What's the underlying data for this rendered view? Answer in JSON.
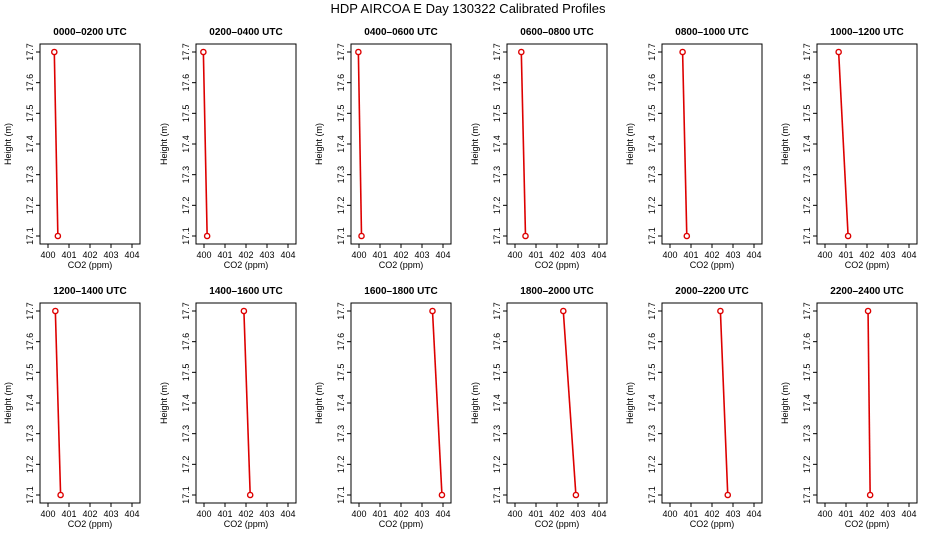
{
  "figure": {
    "title": "HDP AIRCOA E  Day 130322  Calibrated Profiles"
  },
  "chart_data": [
    {
      "type": "line",
      "title": "0000–0200 UTC",
      "xlabel": "CO2 (ppm)",
      "ylabel": "Height (m)",
      "xlim": [
        400,
        404
      ],
      "ylim": [
        17.1,
        17.7
      ],
      "x_ticks": [
        "400",
        "401",
        "402",
        "403",
        "404"
      ],
      "y_ticks": [
        "17.1",
        "17.2",
        "17.3",
        "17.4",
        "17.5",
        "17.6",
        "17.7"
      ],
      "grid": false,
      "series": [
        {
          "color": "#dd0000",
          "points": [
            {
              "x": 400.3,
              "y": 17.7
            },
            {
              "x": 400.47,
              "y": 17.1
            }
          ]
        }
      ]
    },
    {
      "type": "line",
      "title": "0200–0400 UTC",
      "xlabel": "CO2 (ppm)",
      "ylabel": "Height (m)",
      "xlim": [
        400,
        404
      ],
      "ylim": [
        17.1,
        17.7
      ],
      "x_ticks": [
        "400",
        "401",
        "402",
        "403",
        "404"
      ],
      "y_ticks": [
        "17.1",
        "17.2",
        "17.3",
        "17.4",
        "17.5",
        "17.6",
        "17.7"
      ],
      "grid": false,
      "series": [
        {
          "color": "#dd0000",
          "points": [
            {
              "x": 399.97,
              "y": 17.7
            },
            {
              "x": 400.15,
              "y": 17.1
            }
          ]
        }
      ]
    },
    {
      "type": "line",
      "title": "0400–0600 UTC",
      "xlabel": "CO2 (ppm)",
      "ylabel": "Height (m)",
      "xlim": [
        400,
        404
      ],
      "ylim": [
        17.1,
        17.7
      ],
      "x_ticks": [
        "400",
        "401",
        "402",
        "403",
        "404"
      ],
      "y_ticks": [
        "17.1",
        "17.2",
        "17.3",
        "17.4",
        "17.5",
        "17.6",
        "17.7"
      ],
      "grid": false,
      "series": [
        {
          "color": "#dd0000",
          "points": [
            {
              "x": 399.97,
              "y": 17.7
            },
            {
              "x": 400.12,
              "y": 17.1
            }
          ]
        }
      ]
    },
    {
      "type": "line",
      "title": "0600–0800 UTC",
      "xlabel": "CO2 (ppm)",
      "ylabel": "Height (m)",
      "xlim": [
        400,
        404
      ],
      "ylim": [
        17.1,
        17.7
      ],
      "x_ticks": [
        "400",
        "401",
        "402",
        "403",
        "404"
      ],
      "y_ticks": [
        "17.1",
        "17.2",
        "17.3",
        "17.4",
        "17.5",
        "17.6",
        "17.7"
      ],
      "grid": false,
      "series": [
        {
          "color": "#dd0000",
          "points": [
            {
              "x": 400.3,
              "y": 17.7
            },
            {
              "x": 400.5,
              "y": 17.1
            }
          ]
        }
      ]
    },
    {
      "type": "line",
      "title": "0800–1000 UTC",
      "xlabel": "CO2 (ppm)",
      "ylabel": "Height (m)",
      "xlim": [
        400,
        404
      ],
      "ylim": [
        17.1,
        17.7
      ],
      "x_ticks": [
        "400",
        "401",
        "402",
        "403",
        "404"
      ],
      "y_ticks": [
        "17.1",
        "17.2",
        "17.3",
        "17.4",
        "17.5",
        "17.6",
        "17.7"
      ],
      "grid": false,
      "series": [
        {
          "color": "#dd0000",
          "points": [
            {
              "x": 400.6,
              "y": 17.7
            },
            {
              "x": 400.8,
              "y": 17.1
            }
          ]
        }
      ]
    },
    {
      "type": "line",
      "title": "1000–1200 UTC",
      "xlabel": "CO2 (ppm)",
      "ylabel": "Height (m)",
      "xlim": [
        400,
        404
      ],
      "ylim": [
        17.1,
        17.7
      ],
      "x_ticks": [
        "400",
        "401",
        "402",
        "403",
        "404"
      ],
      "y_ticks": [
        "17.1",
        "17.2",
        "17.3",
        "17.4",
        "17.5",
        "17.6",
        "17.7"
      ],
      "grid": false,
      "series": [
        {
          "color": "#dd0000",
          "points": [
            {
              "x": 400.65,
              "y": 17.7
            },
            {
              "x": 401.1,
              "y": 17.1
            }
          ]
        }
      ]
    },
    {
      "type": "line",
      "title": "1200–1400 UTC",
      "xlabel": "CO2 (ppm)",
      "ylabel": "Height (m)",
      "xlim": [
        400,
        404
      ],
      "ylim": [
        17.1,
        17.7
      ],
      "x_ticks": [
        "400",
        "401",
        "402",
        "403",
        "404"
      ],
      "y_ticks": [
        "17.1",
        "17.2",
        "17.3",
        "17.4",
        "17.5",
        "17.6",
        "17.7"
      ],
      "grid": false,
      "series": [
        {
          "color": "#dd0000",
          "points": [
            {
              "x": 400.35,
              "y": 17.7
            },
            {
              "x": 400.6,
              "y": 17.1
            }
          ]
        }
      ]
    },
    {
      "type": "line",
      "title": "1400–1600 UTC",
      "xlabel": "CO2 (ppm)",
      "ylabel": "Height (m)",
      "xlim": [
        400,
        404
      ],
      "ylim": [
        17.1,
        17.7
      ],
      "x_ticks": [
        "400",
        "401",
        "402",
        "403",
        "404"
      ],
      "y_ticks": [
        "17.1",
        "17.2",
        "17.3",
        "17.4",
        "17.5",
        "17.6",
        "17.7"
      ],
      "grid": false,
      "series": [
        {
          "color": "#dd0000",
          "points": [
            {
              "x": 401.9,
              "y": 17.7
            },
            {
              "x": 402.2,
              "y": 17.1
            }
          ]
        }
      ]
    },
    {
      "type": "line",
      "title": "1600–1800 UTC",
      "xlabel": "CO2 (ppm)",
      "ylabel": "Height (m)",
      "xlim": [
        400,
        404
      ],
      "ylim": [
        17.1,
        17.7
      ],
      "x_ticks": [
        "400",
        "401",
        "402",
        "403",
        "404"
      ],
      "y_ticks": [
        "17.1",
        "17.2",
        "17.3",
        "17.4",
        "17.5",
        "17.6",
        "17.7"
      ],
      "grid": false,
      "series": [
        {
          "color": "#dd0000",
          "points": [
            {
              "x": 403.5,
              "y": 17.7
            },
            {
              "x": 403.95,
              "y": 17.1
            }
          ]
        }
      ]
    },
    {
      "type": "line",
      "title": "1800–2000 UTC",
      "xlabel": "CO2 (ppm)",
      "ylabel": "Height (m)",
      "xlim": [
        400,
        404
      ],
      "ylim": [
        17.1,
        17.7
      ],
      "x_ticks": [
        "400",
        "401",
        "402",
        "403",
        "404"
      ],
      "y_ticks": [
        "17.1",
        "17.2",
        "17.3",
        "17.4",
        "17.5",
        "17.6",
        "17.7"
      ],
      "grid": false,
      "series": [
        {
          "color": "#dd0000",
          "points": [
            {
              "x": 402.3,
              "y": 17.7
            },
            {
              "x": 402.9,
              "y": 17.1
            }
          ]
        }
      ]
    },
    {
      "type": "line",
      "title": "2000–2200 UTC",
      "xlabel": "CO2 (ppm)",
      "ylabel": "Height (m)",
      "xlim": [
        400,
        404
      ],
      "ylim": [
        17.1,
        17.7
      ],
      "x_ticks": [
        "400",
        "401",
        "402",
        "403",
        "404"
      ],
      "y_ticks": [
        "17.1",
        "17.2",
        "17.3",
        "17.4",
        "17.5",
        "17.6",
        "17.7"
      ],
      "grid": false,
      "series": [
        {
          "color": "#dd0000",
          "points": [
            {
              "x": 402.4,
              "y": 17.7
            },
            {
              "x": 402.75,
              "y": 17.1
            }
          ]
        }
      ]
    },
    {
      "type": "line",
      "title": "2200–2400 UTC",
      "xlabel": "CO2 (ppm)",
      "ylabel": "Height (m)",
      "xlim": [
        400,
        404
      ],
      "ylim": [
        17.1,
        17.7
      ],
      "x_ticks": [
        "400",
        "401",
        "402",
        "403",
        "404"
      ],
      "y_ticks": [
        "17.1",
        "17.2",
        "17.3",
        "17.4",
        "17.5",
        "17.6",
        "17.7"
      ],
      "grid": false,
      "series": [
        {
          "color": "#dd0000",
          "points": [
            {
              "x": 402.05,
              "y": 17.7
            },
            {
              "x": 402.15,
              "y": 17.1
            }
          ]
        }
      ]
    }
  ]
}
